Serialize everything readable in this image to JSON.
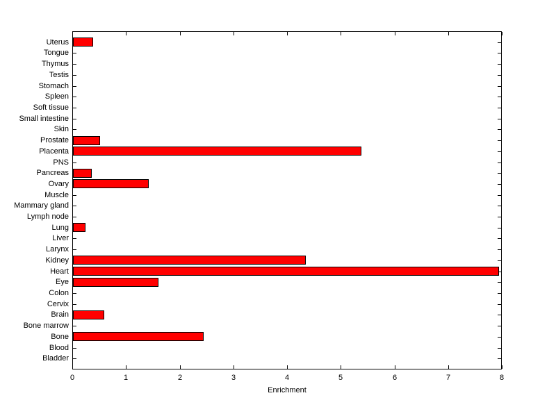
{
  "chart_data": {
    "type": "bar",
    "orientation": "horizontal",
    "title": "",
    "xlabel": "Enrichment",
    "ylabel": "",
    "xlim": [
      0,
      8
    ],
    "xticks": [
      0,
      1,
      2,
      3,
      4,
      5,
      6,
      7,
      8
    ],
    "grid": false,
    "legend": false,
    "bar_color": "#ff0000",
    "bar_edge_color": "#000000",
    "axis_color": "#000000",
    "background_color": "#ffffff",
    "categories_order": "top-to-bottom",
    "categories": [
      "Uterus",
      "Tongue",
      "Thymus",
      "Testis",
      "Stomach",
      "Spleen",
      "Soft tissue",
      "Small intestine",
      "Skin",
      "Prostate",
      "Placenta",
      "PNS",
      "Pancreas",
      "Ovary",
      "Muscle",
      "Mammary gland",
      "Lymph node",
      "Lung",
      "Liver",
      "Larynx",
      "Kidney",
      "Heart",
      "Eye",
      "Colon",
      "Cervix",
      "Brain",
      "Bone marrow",
      "Bone",
      "Blood",
      "Bladder"
    ],
    "values": [
      0.38,
      0,
      0,
      0,
      0,
      0,
      0,
      0,
      0,
      0.5,
      5.37,
      0,
      0.35,
      1.41,
      0,
      0,
      0,
      0.23,
      0,
      0,
      4.34,
      7.93,
      1.59,
      0,
      0,
      0.58,
      0,
      2.44,
      0,
      0
    ]
  }
}
